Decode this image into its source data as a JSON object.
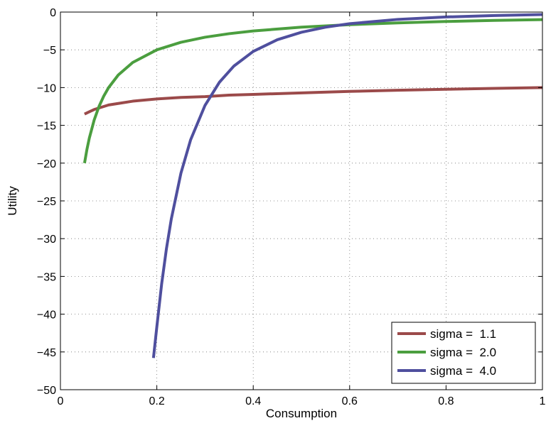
{
  "chart_data": {
    "type": "line",
    "xlabel": "Consumption",
    "ylabel": "Utility",
    "xlim": [
      0,
      1
    ],
    "ylim": [
      -50,
      0
    ],
    "xticks": [
      0,
      0.2,
      0.4,
      0.6,
      0.8,
      1
    ],
    "xtick_labels": [
      "0",
      "0.2",
      "0.4",
      "0.6",
      "0.8",
      "1"
    ],
    "yticks": [
      0,
      -5,
      -10,
      -15,
      -20,
      -25,
      -30,
      -35,
      -40,
      -45,
      -50
    ],
    "ytick_labels": [
      "0",
      "−5",
      "−10",
      "−15",
      "−20",
      "−25",
      "−30",
      "−35",
      "−40",
      "−45",
      "−50"
    ],
    "grid": true,
    "legend_position": "bottom-right",
    "series": [
      {
        "name": "sigma =  1.1",
        "color": "#9b4a4a",
        "x": [
          0.05,
          0.06,
          0.07,
          0.08,
          0.1,
          0.12,
          0.15,
          0.2,
          0.25,
          0.3,
          0.35,
          0.4,
          0.5,
          0.6,
          0.7,
          0.8,
          0.9,
          1.0
        ],
        "y": [
          -13.5,
          -13.2,
          -12.9,
          -12.7,
          -12.3,
          -12.1,
          -11.8,
          -11.5,
          -11.3,
          -11.2,
          -11.0,
          -10.9,
          -10.7,
          -10.5,
          -10.35,
          -10.22,
          -10.1,
          -10.0
        ]
      },
      {
        "name": "sigma =  2.0",
        "color": "#4b9e3f",
        "x": [
          0.05,
          0.055,
          0.06,
          0.07,
          0.08,
          0.09,
          0.1,
          0.12,
          0.15,
          0.2,
          0.25,
          0.3,
          0.35,
          0.4,
          0.5,
          0.6,
          0.7,
          0.8,
          0.9,
          1.0
        ],
        "y": [
          -20.0,
          -18.18,
          -16.67,
          -14.29,
          -12.5,
          -11.11,
          -10.0,
          -8.33,
          -6.67,
          -5.0,
          -4.0,
          -3.33,
          -2.86,
          -2.5,
          -2.0,
          -1.67,
          -1.43,
          -1.25,
          -1.11,
          -1.0
        ]
      },
      {
        "name": "sigma =  4.0",
        "color": "#4f4f9e",
        "x": [
          0.193,
          0.2,
          0.21,
          0.22,
          0.23,
          0.25,
          0.27,
          0.3,
          0.33,
          0.36,
          0.4,
          0.45,
          0.5,
          0.55,
          0.6,
          0.7,
          0.8,
          0.9,
          1.0
        ],
        "y": [
          -45.8,
          -41.67,
          -36.0,
          -31.3,
          -27.4,
          -21.33,
          -16.93,
          -12.35,
          -9.28,
          -7.14,
          -5.21,
          -3.66,
          -2.67,
          -2.0,
          -1.54,
          -0.97,
          -0.65,
          -0.46,
          -0.33
        ]
      }
    ]
  }
}
